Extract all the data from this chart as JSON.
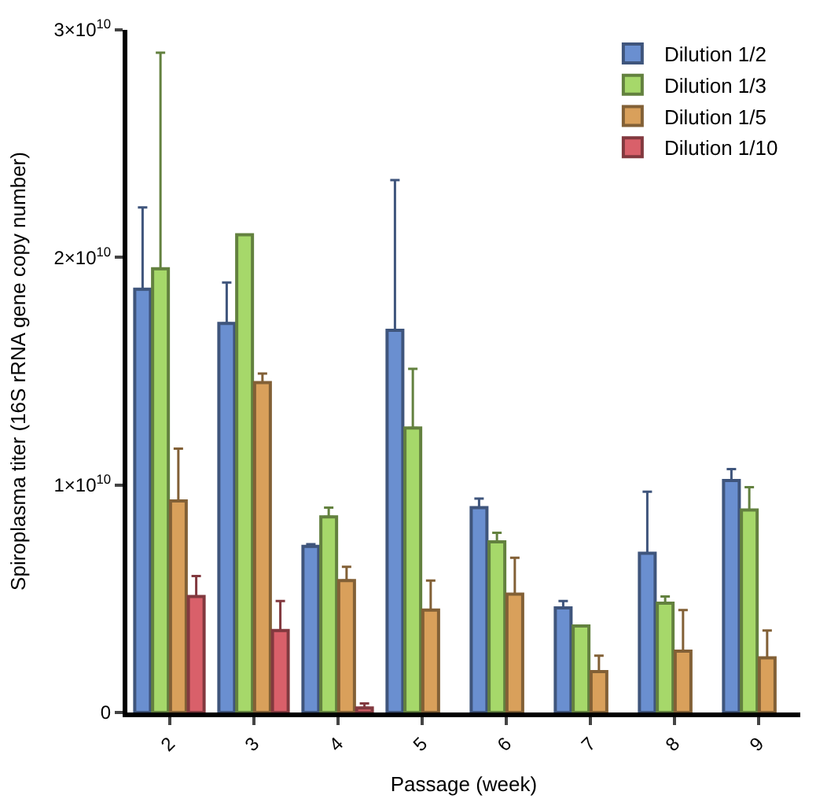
{
  "chart_data": {
    "type": "bar",
    "xlabel": "Passage (week)",
    "ylabel": "Spiroplasma titer (16S rRNA gene copy number)",
    "categories": [
      "2",
      "3",
      "4",
      "5",
      "6",
      "7",
      "8",
      "9"
    ],
    "series": [
      {
        "name": "Dilution 1/2",
        "color": "#6a8fd0",
        "values": [
          18600000000.0,
          17100000000.0,
          7300000000.0,
          16800000000.0,
          9000000000.0,
          4600000000.0,
          7000000000.0,
          10200000000.0
        ],
        "errors": [
          [
            18600000000.0,
            22200000000.0
          ],
          [
            17100000000.0,
            18900000000.0
          ],
          [
            7300000000.0,
            7400000000.0
          ],
          [
            16800000000.0,
            23400000000.0
          ],
          [
            9000000000.0,
            9400000000.0
          ],
          [
            4600000000.0,
            4900000000.0
          ],
          [
            7000000000.0,
            9700000000.0
          ],
          [
            10200000000.0,
            10700000000.0
          ]
        ]
      },
      {
        "name": "Dilution 1/3",
        "color": "#a6d86a",
        "values": [
          19500000000.0,
          21000000000.0,
          8600000000.0,
          12500000000.0,
          7500000000.0,
          3800000000.0,
          4800000000.0,
          8900000000.0
        ],
        "errors": [
          [
            19500000000.0,
            29000000000.0
          ],
          null,
          [
            8600000000.0,
            9000000000.0
          ],
          [
            12500000000.0,
            15100000000.0
          ],
          [
            7500000000.0,
            7900000000.0
          ],
          null,
          [
            4800000000.0,
            5100000000.0
          ],
          [
            8900000000.0,
            9900000000.0
          ]
        ]
      },
      {
        "name": "Dilution 1/5",
        "color": "#d9a05b",
        "values": [
          9300000000.0,
          14500000000.0,
          5800000000.0,
          4500000000.0,
          5200000000.0,
          1800000000.0,
          2700000000.0,
          2400000000.0
        ],
        "errors": [
          [
            9300000000.0,
            11600000000.0
          ],
          [
            14500000000.0,
            14900000000.0
          ],
          [
            5800000000.0,
            6400000000.0
          ],
          [
            4500000000.0,
            5800000000.0
          ],
          [
            5200000000.0,
            6800000000.0
          ],
          [
            1800000000.0,
            2500000000.0
          ],
          [
            2700000000.0,
            4500000000.0
          ],
          [
            2400000000.0,
            3600000000.0
          ]
        ]
      },
      {
        "name": "Dilution 1/10",
        "color": "#d9606a",
        "values": [
          5100000000.0,
          3600000000.0,
          200000000.0,
          null,
          null,
          null,
          null,
          null
        ],
        "errors": [
          [
            5100000000.0,
            6000000000.0
          ],
          [
            3600000000.0,
            4900000000.0
          ],
          [
            200000000.0,
            400000000.0
          ],
          null,
          null,
          null,
          null,
          null
        ]
      }
    ],
    "ylim": [
      0,
      30000000000.0
    ],
    "yticks": [
      0,
      {
        "value": 10000000000.0,
        "label": "1×10$^{10}$"
      },
      {
        "value": 20000000000.0,
        "label": "2×10$^{10}$"
      },
      {
        "value": 30000000000.0,
        "label": "3×10$^{10}$"
      }
    ],
    "legend": "top right"
  }
}
